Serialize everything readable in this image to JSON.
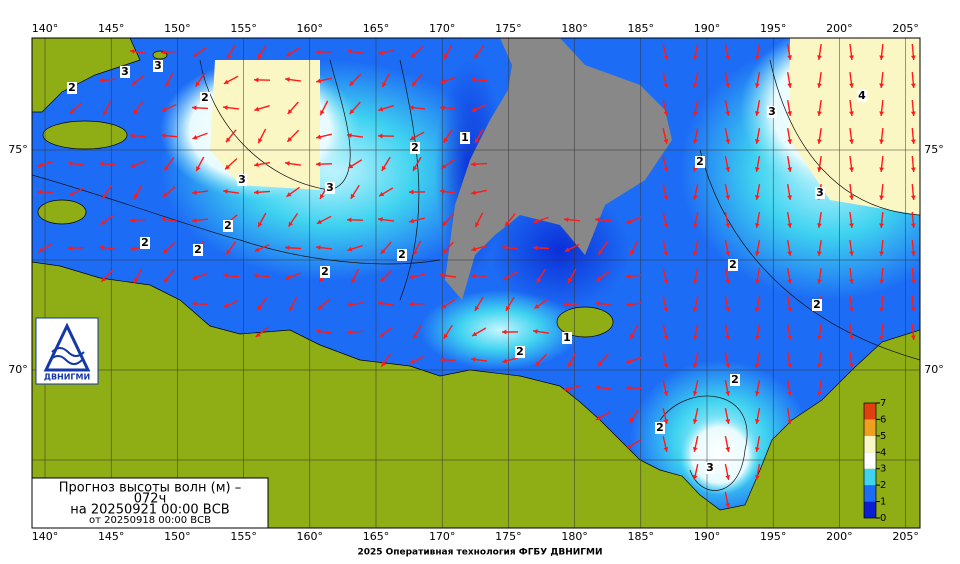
{
  "grid": {
    "lon_labels": [
      "140°",
      "145°",
      "150°",
      "155°",
      "160°",
      "165°",
      "170°",
      "175°",
      "180°",
      "185°",
      "190°",
      "195°",
      "200°",
      "205°"
    ],
    "lat_labels": [
      "75°",
      "70°"
    ]
  },
  "title_box": {
    "line1": "Прогноз высоты волн (м) –",
    "line2": "072ч",
    "line3": "на 20250921 00:00 ВСВ",
    "line4": "от 20250918 00:00 ВСВ"
  },
  "logo": {
    "text": "ДВНИГМИ"
  },
  "legend": {
    "ticks": [
      0,
      1,
      2,
      3,
      4,
      5,
      6,
      7
    ]
  },
  "contour_labels": [
    "3",
    "3",
    "2",
    "2",
    "3",
    "1",
    "2",
    "3",
    "2",
    "2",
    "2",
    "2",
    "2",
    "2",
    "3",
    "4",
    "2",
    "2",
    "2",
    "3",
    "2",
    "1",
    "2",
    "3"
  ],
  "footer": "2025 Оперативная технология ФГБУ ДВНИГМИ"
}
